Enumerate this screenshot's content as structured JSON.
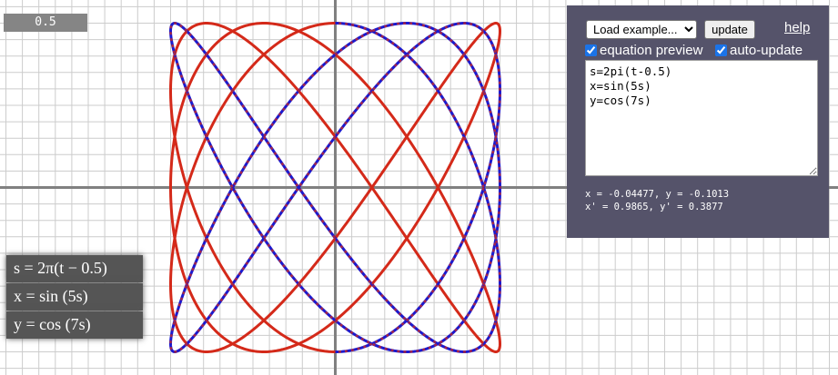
{
  "time_badge": "0.5",
  "controls": {
    "example_select": "Load example...",
    "update_label": "update",
    "help_label": "help",
    "preview_label": "equation preview",
    "preview_checked": true,
    "auto_label": "auto-update",
    "auto_checked": true
  },
  "editor": {
    "code": "s=2pi(t-0.5)\nx=sin(5s)\ny=cos(7s)"
  },
  "readout": {
    "line1": "x = -0.04477, y = -0.1013",
    "line2": "x' = 0.9865, y' = 0.3877"
  },
  "equations": {
    "line1": "s = 2π(t − 0.5)",
    "line2": "x = sin (5s)",
    "line3": "y = cos (7s)"
  },
  "curve": {
    "x_frequency": 5,
    "y_frequency": 7,
    "t_shift": 0.5,
    "color_forward": "#1a1ad0",
    "color_reverse": "#d42a1a"
  },
  "plot_colors": {
    "grid": "#cccccc",
    "axes": "#808080"
  }
}
